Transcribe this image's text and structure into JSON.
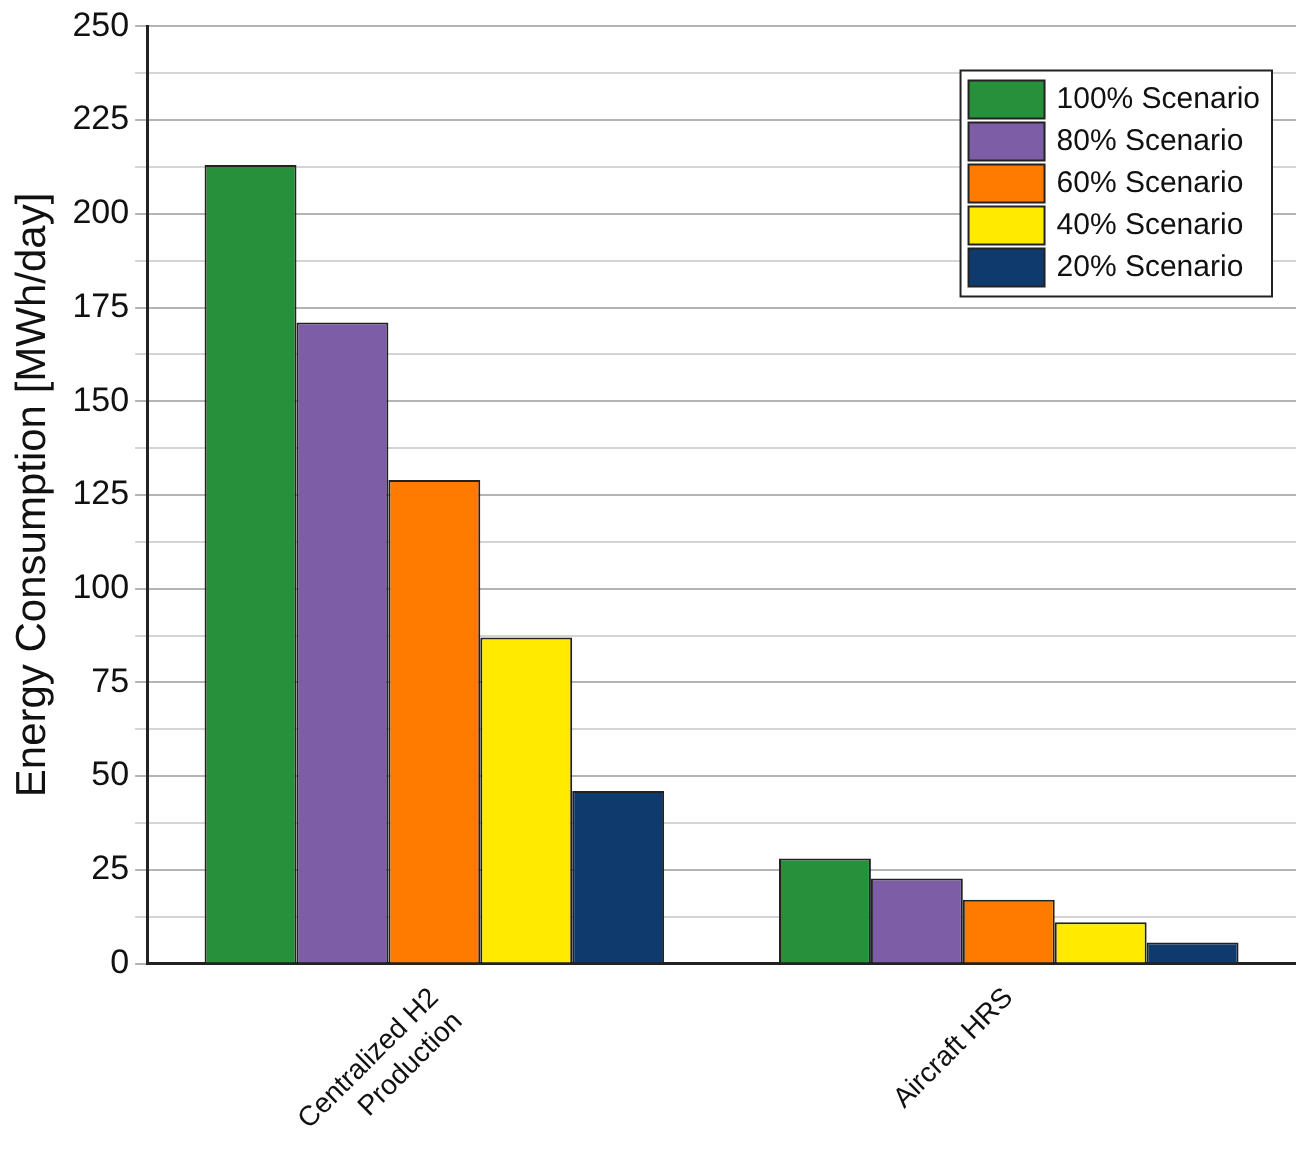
{
  "chart_data": {
    "type": "bar",
    "ylabel": "Energy Consumption [MWh/day]",
    "categories": [
      "Centralized H2 Production",
      "Aircraft HRS"
    ],
    "series": [
      {
        "name": "100% Scenario",
        "color": "#27903a",
        "values": [
          213,
          28
        ]
      },
      {
        "name": "80% Scenario",
        "color": "#7d5ea6",
        "values": [
          171,
          22.7
        ]
      },
      {
        "name": "60% Scenario",
        "color": "#fe7b00",
        "values": [
          129,
          17
        ]
      },
      {
        "name": "40% Scenario",
        "color": "#ffea00",
        "values": [
          87,
          11
        ]
      },
      {
        "name": "20% Scenario",
        "color": "#0e3a6e",
        "values": [
          46,
          5.6
        ]
      }
    ],
    "ylim": [
      0,
      250
    ],
    "yticks": [
      0,
      {
        "value": 12.5,
        "label": null
      },
      25,
      {
        "value": 37.5,
        "label": null
      },
      50,
      {
        "value": 62.5,
        "label": null
      },
      75,
      {
        "value": 87.5,
        "label": null
      },
      100,
      {
        "value": 112.5,
        "label": null
      },
      125,
      {
        "value": 137.5,
        "label": null
      },
      150,
      {
        "value": 162.5,
        "label": null
      },
      175,
      {
        "value": 187.5,
        "label": null
      },
      200,
      {
        "value": 212.5,
        "label": null
      },
      225,
      {
        "value": 237.5,
        "label": null
      },
      250
    ],
    "grid": "y",
    "legend": "top right"
  }
}
